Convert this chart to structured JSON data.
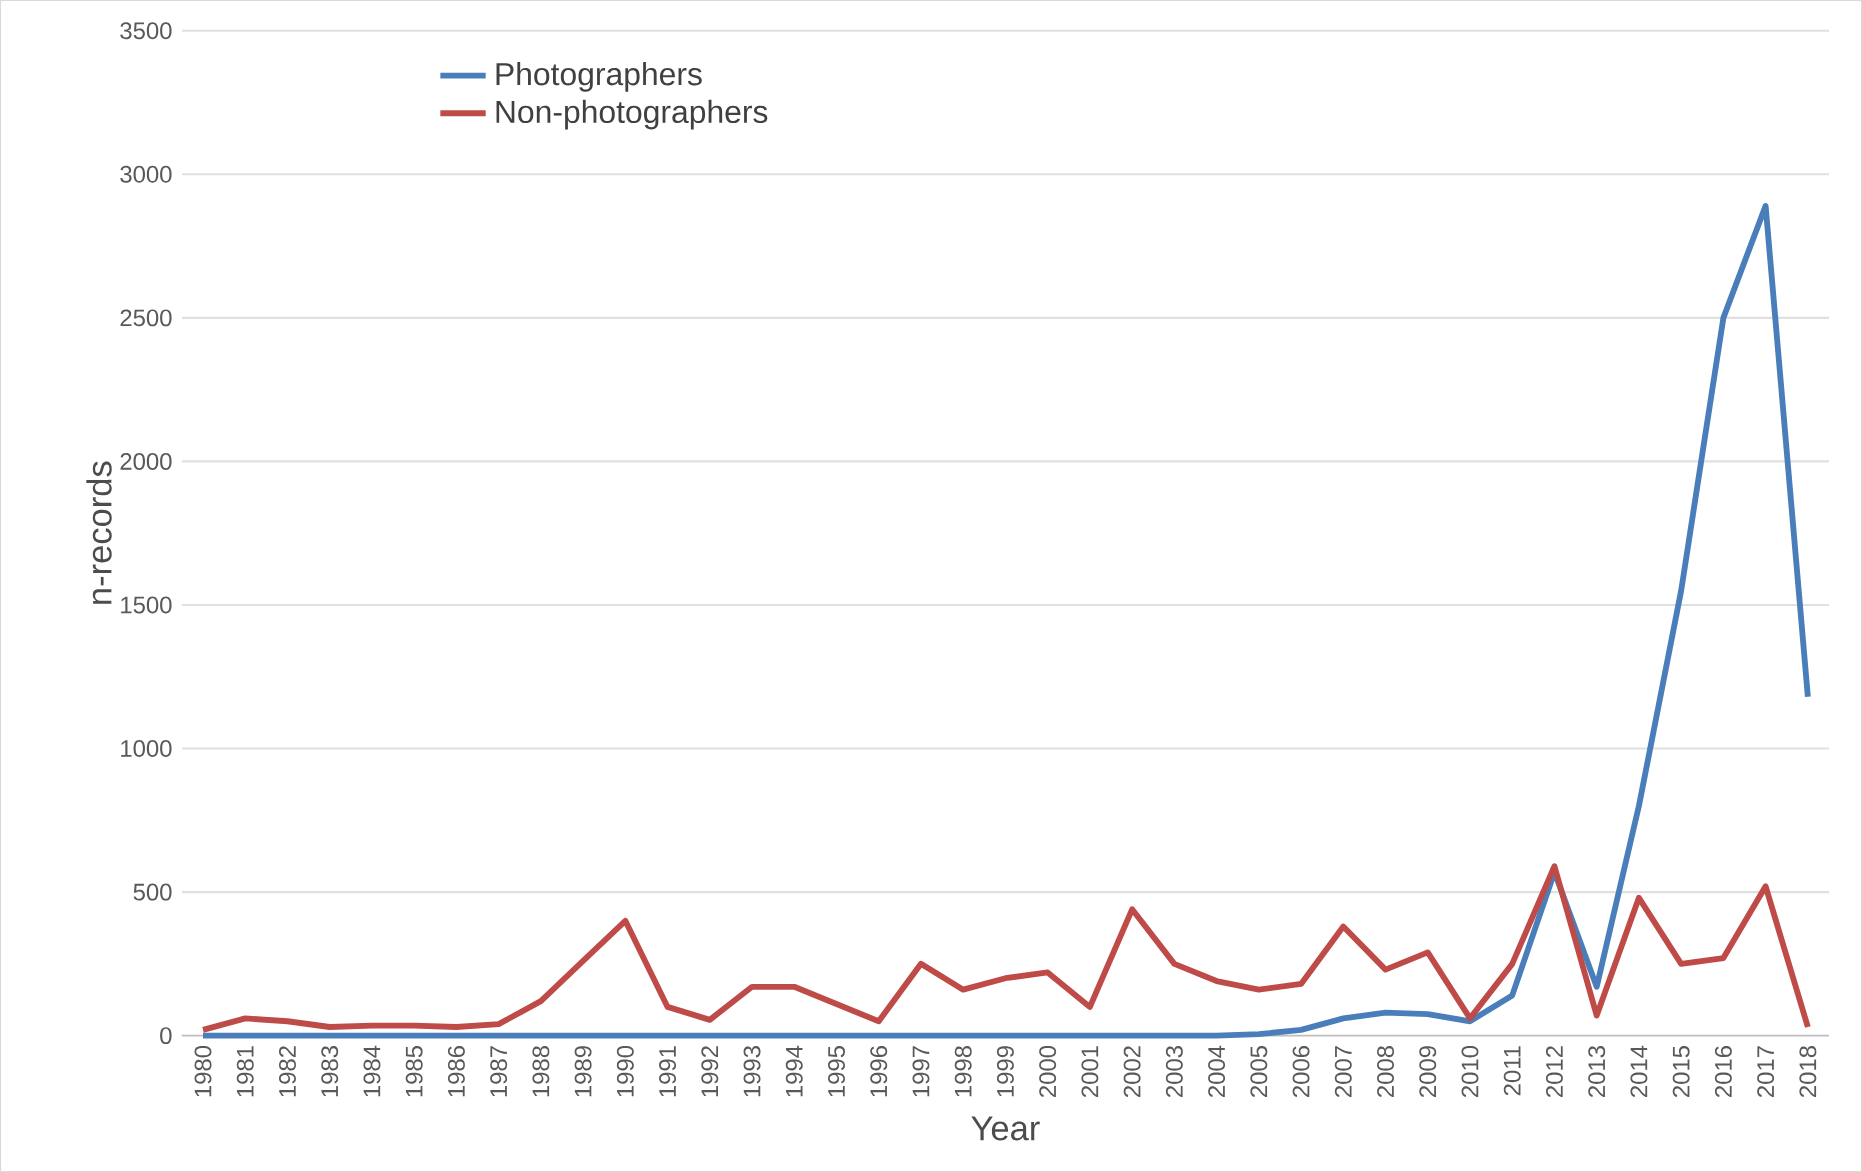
{
  "chart_data": {
    "type": "line",
    "xlabel": "Year",
    "ylabel": "n-records",
    "categories": [
      "1980",
      "1981",
      "1982",
      "1983",
      "1984",
      "1985",
      "1986",
      "1987",
      "1988",
      "1989",
      "1990",
      "1991",
      "1992",
      "1993",
      "1994",
      "1995",
      "1996",
      "1997",
      "1998",
      "1999",
      "2000",
      "2001",
      "2002",
      "2003",
      "2004",
      "2005",
      "2006",
      "2007",
      "2008",
      "2009",
      "2010",
      "2011",
      "2012",
      "2013",
      "2014",
      "2015",
      "2016",
      "2017",
      "2018"
    ],
    "series": [
      {
        "name": "Photographers",
        "color": "#4a7ebb",
        "values": [
          0,
          0,
          0,
          0,
          0,
          0,
          0,
          0,
          0,
          0,
          0,
          0,
          0,
          0,
          0,
          0,
          0,
          0,
          0,
          0,
          0,
          0,
          0,
          0,
          0,
          5,
          20,
          60,
          80,
          75,
          50,
          140,
          570,
          170,
          800,
          1550,
          2500,
          2890,
          1180
        ]
      },
      {
        "name": "Non-photographers",
        "color": "#be4b48",
        "values": [
          20,
          60,
          50,
          30,
          35,
          35,
          30,
          40,
          120,
          260,
          400,
          100,
          55,
          170,
          170,
          110,
          50,
          250,
          160,
          200,
          220,
          100,
          440,
          250,
          190,
          160,
          180,
          380,
          230,
          290,
          60,
          250,
          590,
          70,
          480,
          250,
          270,
          520,
          30
        ]
      }
    ],
    "ylim": [
      0,
      3500
    ],
    "yticks": [
      0,
      500,
      1000,
      1500,
      2000,
      2500,
      3000,
      3500
    ],
    "grid": "y",
    "legend": "top left",
    "marker": "none",
    "line_style": "solid"
  }
}
